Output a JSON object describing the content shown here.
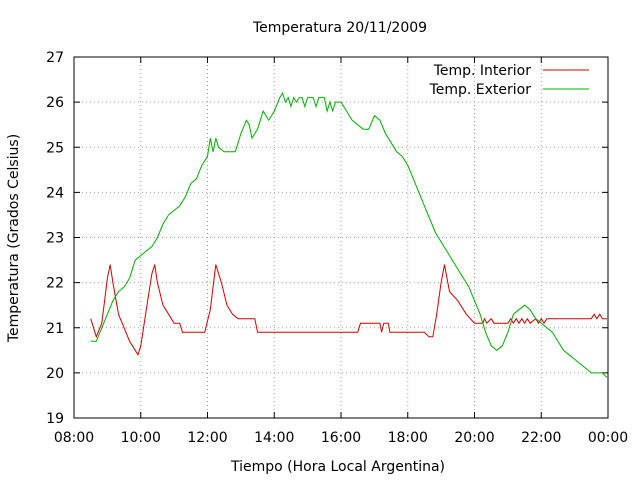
{
  "chart_data": {
    "type": "line",
    "title": "Temperatura 20/11/2009",
    "xlabel": "Tiempo (Hora Local Argentina)",
    "ylabel": "Temperatura (Grados Celsius)",
    "xlim": [
      "08:00",
      "00:00"
    ],
    "ylim": [
      19,
      27
    ],
    "x_ticks": [
      "08:00",
      "10:00",
      "12:00",
      "14:00",
      "16:00",
      "18:00",
      "20:00",
      "22:00",
      "00:00"
    ],
    "y_ticks": [
      "19",
      "20",
      "21",
      "22",
      "23",
      "24",
      "25",
      "26",
      "27"
    ],
    "grid": true,
    "legend_position": "top-right",
    "series": [
      {
        "name": "Temp. Interior",
        "color": "#d40000",
        "points": [
          [
            "08:30",
            21.2
          ],
          [
            "08:40",
            20.8
          ],
          [
            "08:50",
            21.1
          ],
          [
            "09:00",
            22.1
          ],
          [
            "09:05",
            22.4
          ],
          [
            "09:10",
            22.0
          ],
          [
            "09:20",
            21.3
          ],
          [
            "09:30",
            21.0
          ],
          [
            "09:40",
            20.7
          ],
          [
            "09:50",
            20.5
          ],
          [
            "09:55",
            20.4
          ],
          [
            "10:00",
            20.6
          ],
          [
            "10:10",
            21.4
          ],
          [
            "10:20",
            22.2
          ],
          [
            "10:25",
            22.4
          ],
          [
            "10:30",
            22.0
          ],
          [
            "10:40",
            21.5
          ],
          [
            "10:50",
            21.3
          ],
          [
            "11:00",
            21.1
          ],
          [
            "11:10",
            21.1
          ],
          [
            "11:15",
            20.9
          ],
          [
            "11:30",
            20.9
          ],
          [
            "11:45",
            20.9
          ],
          [
            "11:55",
            20.9
          ],
          [
            "12:05",
            21.4
          ],
          [
            "12:15",
            22.4
          ],
          [
            "12:25",
            22.0
          ],
          [
            "12:35",
            21.5
          ],
          [
            "12:45",
            21.3
          ],
          [
            "12:55",
            21.2
          ],
          [
            "13:05",
            21.2
          ],
          [
            "13:15",
            21.2
          ],
          [
            "13:25",
            21.2
          ],
          [
            "13:30",
            20.9
          ],
          [
            "14:00",
            20.9
          ],
          [
            "15:00",
            20.9
          ],
          [
            "16:00",
            20.9
          ],
          [
            "16:30",
            20.9
          ],
          [
            "16:35",
            21.1
          ],
          [
            "17:00",
            21.1
          ],
          [
            "17:10",
            21.1
          ],
          [
            "17:13",
            20.9
          ],
          [
            "17:17",
            21.1
          ],
          [
            "17:25",
            21.1
          ],
          [
            "17:28",
            20.9
          ],
          [
            "18:00",
            20.9
          ],
          [
            "18:30",
            20.9
          ],
          [
            "18:38",
            20.8
          ],
          [
            "18:45",
            20.8
          ],
          [
            "18:52",
            21.3
          ],
          [
            "19:00",
            22.0
          ],
          [
            "19:06",
            22.4
          ],
          [
            "19:15",
            21.8
          ],
          [
            "19:30",
            21.6
          ],
          [
            "19:45",
            21.3
          ],
          [
            "20:00",
            21.1
          ],
          [
            "20:15",
            21.1
          ],
          [
            "20:18",
            21.2
          ],
          [
            "20:22",
            21.1
          ],
          [
            "20:30",
            21.2
          ],
          [
            "20:35",
            21.1
          ],
          [
            "20:50",
            21.1
          ],
          [
            "21:00",
            21.1
          ],
          [
            "21:05",
            21.2
          ],
          [
            "21:10",
            21.1
          ],
          [
            "21:15",
            21.2
          ],
          [
            "21:20",
            21.1
          ],
          [
            "21:25",
            21.2
          ],
          [
            "21:30",
            21.1
          ],
          [
            "21:35",
            21.2
          ],
          [
            "21:40",
            21.1
          ],
          [
            "21:50",
            21.2
          ],
          [
            "21:55",
            21.1
          ],
          [
            "22:00",
            21.2
          ],
          [
            "22:05",
            21.1
          ],
          [
            "22:10",
            21.2
          ],
          [
            "22:30",
            21.2
          ],
          [
            "23:00",
            21.2
          ],
          [
            "23:30",
            21.2
          ],
          [
            "23:35",
            21.3
          ],
          [
            "23:40",
            21.2
          ],
          [
            "23:45",
            21.3
          ],
          [
            "23:50",
            21.2
          ],
          [
            "23:58",
            21.2
          ]
        ]
      },
      {
        "name": "Temp. Exterior",
        "color": "#00b000",
        "points": [
          [
            "08:30",
            20.7
          ],
          [
            "08:40",
            20.7
          ],
          [
            "08:50",
            21.0
          ],
          [
            "09:00",
            21.3
          ],
          [
            "09:10",
            21.6
          ],
          [
            "09:20",
            21.8
          ],
          [
            "09:30",
            21.9
          ],
          [
            "09:40",
            22.1
          ],
          [
            "09:50",
            22.5
          ],
          [
            "10:00",
            22.6
          ],
          [
            "10:10",
            22.7
          ],
          [
            "10:20",
            22.8
          ],
          [
            "10:30",
            23.0
          ],
          [
            "10:40",
            23.3
          ],
          [
            "10:50",
            23.5
          ],
          [
            "11:00",
            23.6
          ],
          [
            "11:10",
            23.7
          ],
          [
            "11:20",
            23.9
          ],
          [
            "11:30",
            24.2
          ],
          [
            "11:40",
            24.3
          ],
          [
            "11:50",
            24.6
          ],
          [
            "12:00",
            24.8
          ],
          [
            "12:05",
            25.2
          ],
          [
            "12:10",
            24.9
          ],
          [
            "12:15",
            25.2
          ],
          [
            "12:20",
            25.0
          ],
          [
            "12:30",
            24.9
          ],
          [
            "12:40",
            24.9
          ],
          [
            "12:50",
            24.9
          ],
          [
            "13:00",
            25.3
          ],
          [
            "13:10",
            25.6
          ],
          [
            "13:15",
            25.5
          ],
          [
            "13:20",
            25.2
          ],
          [
            "13:30",
            25.4
          ],
          [
            "13:40",
            25.8
          ],
          [
            "13:50",
            25.6
          ],
          [
            "14:00",
            25.8
          ],
          [
            "14:10",
            26.1
          ],
          [
            "14:15",
            26.2
          ],
          [
            "14:20",
            26.0
          ],
          [
            "14:25",
            26.1
          ],
          [
            "14:30",
            25.9
          ],
          [
            "14:35",
            26.1
          ],
          [
            "14:40",
            26.0
          ],
          [
            "14:45",
            26.1
          ],
          [
            "14:50",
            26.1
          ],
          [
            "14:55",
            25.9
          ],
          [
            "15:00",
            26.1
          ],
          [
            "15:10",
            26.1
          ],
          [
            "15:15",
            25.9
          ],
          [
            "15:20",
            26.1
          ],
          [
            "15:30",
            26.1
          ],
          [
            "15:35",
            25.8
          ],
          [
            "15:40",
            26.0
          ],
          [
            "15:45",
            25.8
          ],
          [
            "15:50",
            26.0
          ],
          [
            "16:00",
            26.0
          ],
          [
            "16:10",
            25.8
          ],
          [
            "16:20",
            25.6
          ],
          [
            "16:30",
            25.5
          ],
          [
            "16:40",
            25.4
          ],
          [
            "16:50",
            25.4
          ],
          [
            "17:00",
            25.7
          ],
          [
            "17:10",
            25.6
          ],
          [
            "17:20",
            25.3
          ],
          [
            "17:30",
            25.1
          ],
          [
            "17:40",
            24.9
          ],
          [
            "17:50",
            24.8
          ],
          [
            "18:00",
            24.6
          ],
          [
            "18:10",
            24.3
          ],
          [
            "18:20",
            24.0
          ],
          [
            "18:30",
            23.7
          ],
          [
            "18:40",
            23.4
          ],
          [
            "18:50",
            23.1
          ],
          [
            "19:00",
            22.9
          ],
          [
            "19:10",
            22.7
          ],
          [
            "19:20",
            22.5
          ],
          [
            "19:30",
            22.3
          ],
          [
            "19:40",
            22.1
          ],
          [
            "19:50",
            21.9
          ],
          [
            "20:00",
            21.6
          ],
          [
            "20:10",
            21.3
          ],
          [
            "20:20",
            20.9
          ],
          [
            "20:30",
            20.6
          ],
          [
            "20:40",
            20.5
          ],
          [
            "20:50",
            20.6
          ],
          [
            "21:00",
            20.9
          ],
          [
            "21:10",
            21.3
          ],
          [
            "21:20",
            21.4
          ],
          [
            "21:30",
            21.5
          ],
          [
            "21:40",
            21.4
          ],
          [
            "21:50",
            21.2
          ],
          [
            "22:00",
            21.1
          ],
          [
            "22:10",
            21.0
          ],
          [
            "22:20",
            20.9
          ],
          [
            "22:30",
            20.7
          ],
          [
            "22:40",
            20.5
          ],
          [
            "22:50",
            20.4
          ],
          [
            "23:00",
            20.3
          ],
          [
            "23:10",
            20.2
          ],
          [
            "23:20",
            20.1
          ],
          [
            "23:30",
            20.0
          ],
          [
            "23:40",
            20.0
          ],
          [
            "23:50",
            20.0
          ],
          [
            "23:58",
            19.9
          ]
        ]
      }
    ]
  }
}
